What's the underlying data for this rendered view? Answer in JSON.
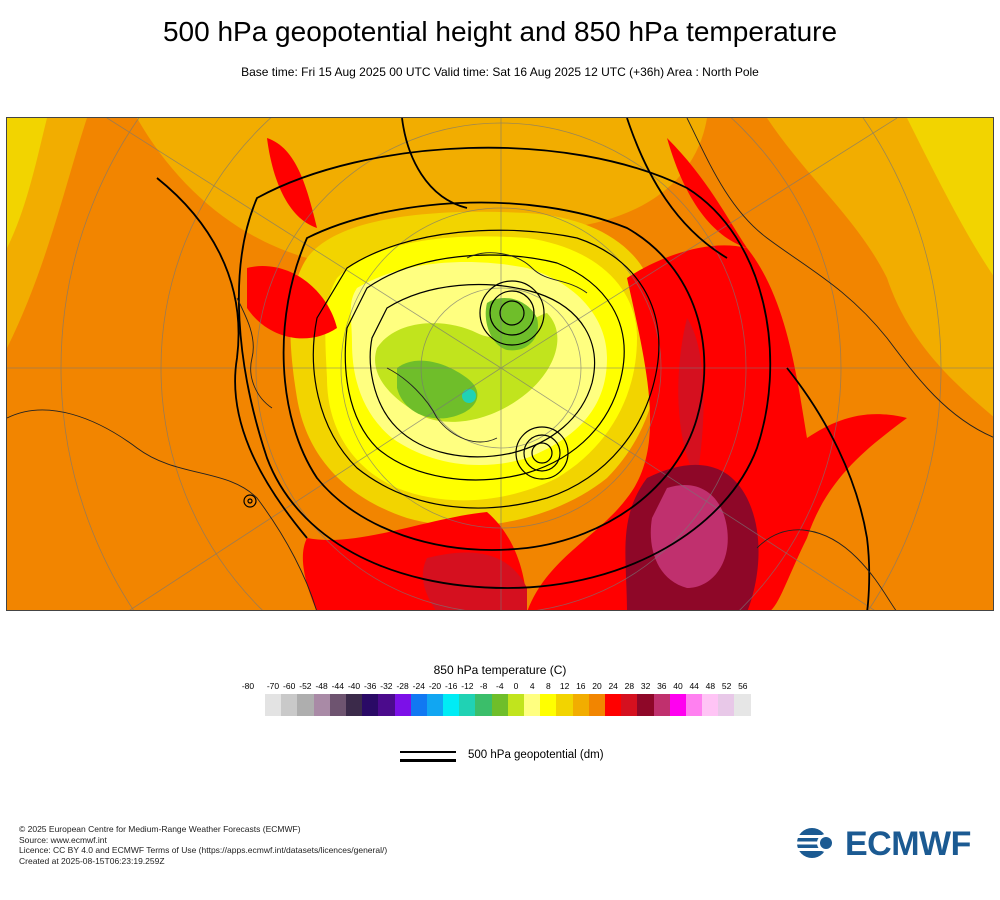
{
  "header": {
    "title": "500 hPa geopotential height and 850 hPa temperature",
    "subtitle": "Base time: Fri 15 Aug 2025 00 UTC Valid time: Sat 16 Aug 2025 12 UTC (+36h) Area : North Pole"
  },
  "legend": {
    "title": "850 hPa temperature (C)",
    "ticks": [
      "-80",
      "-70",
      "-60",
      "-52",
      "-48",
      "-44",
      "-40",
      "-36",
      "-32",
      "-28",
      "-24",
      "-20",
      "-16",
      "-12",
      "-8",
      "-4",
      "0",
      "4",
      "8",
      "12",
      "16",
      "20",
      "24",
      "28",
      "32",
      "36",
      "40",
      "44",
      "48",
      "52",
      "56"
    ],
    "colors": [
      "#e3e3e3",
      "#c9c9c9",
      "#aeaeae",
      "#a98aa6",
      "#6e5470",
      "#3b2a4a",
      "#2a0a66",
      "#4b0b8c",
      "#7c10e8",
      "#1178f2",
      "#11a6f2",
      "#00ecf5",
      "#20d2b4",
      "#3bbe6a",
      "#6fbe2a",
      "#c1e41d",
      "#ffff80",
      "#ffff00",
      "#f2d400",
      "#f2ad00",
      "#f28500",
      "#ff0000",
      "#d5101f",
      "#8e0728",
      "#c0306e",
      "#ff00f0",
      "#ff80f0",
      "#ffc4f5",
      "#e8c8e8",
      "#e6e6e6"
    ]
  },
  "geopotential_key": {
    "label": "500 hPa geopotential (dm)"
  },
  "credits": [
    "© 2025 European Centre for Medium-Range Weather Forecasts (ECMWF)",
    "Source: www.ecmwf.int",
    "Licence: CC BY 4.0 and ECMWF Terms of Use (https://apps.ecmwf.int/datasets/licences/general/)",
    "Created at 2025-08-15T06:23:19.259Z"
  ],
  "logo": {
    "text": "ECMWF",
    "color": "#1b5a92"
  }
}
